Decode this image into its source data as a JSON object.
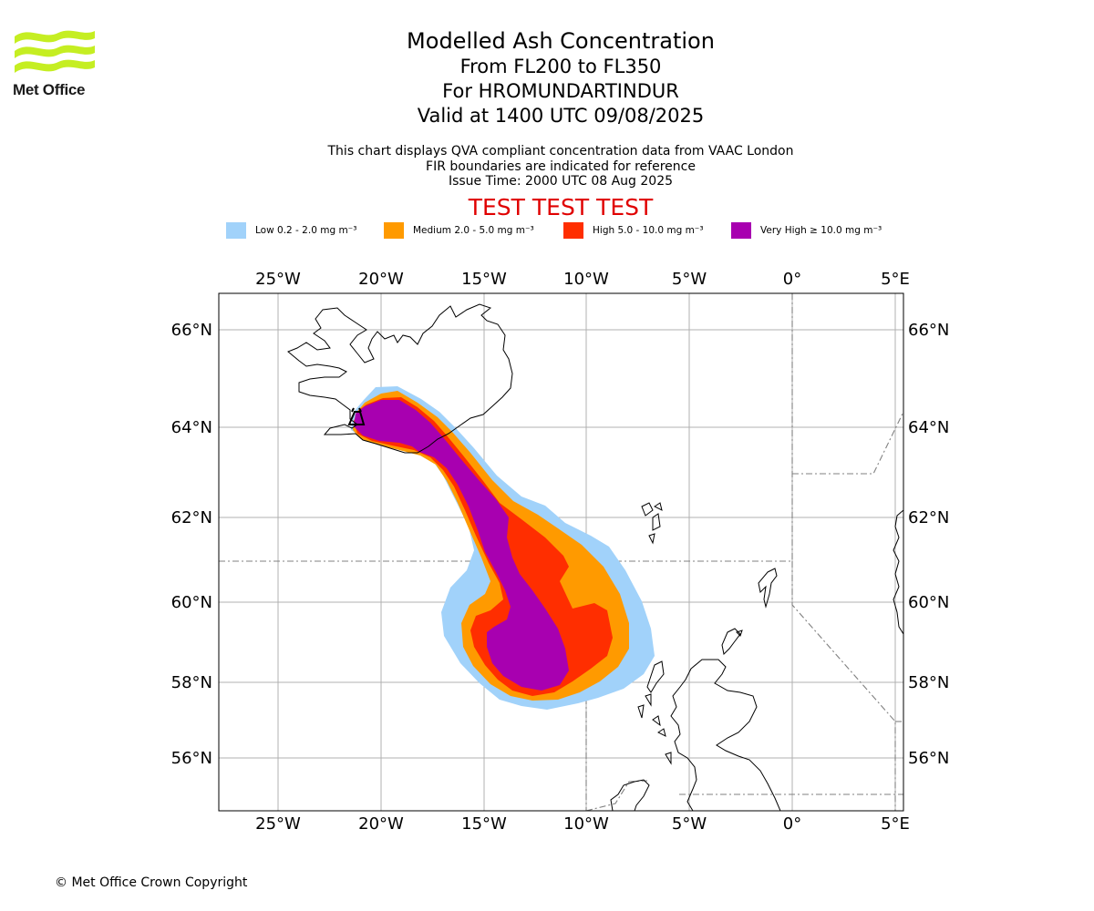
{
  "logo": {
    "text": "Met Office"
  },
  "titles": {
    "line1": "Modelled Ash Concentration",
    "line2": "From FL200 to FL350",
    "line3": "For HROMUNDARTINDUR",
    "line4": "Valid at 1400 UTC 09/08/2025"
  },
  "subtitle": {
    "line1": "This chart displays QVA compliant concentration data from VAAC London",
    "line2": "FIR boundaries are indicated for reference",
    "line3": "Issue Time: 2000 UTC 08 Aug 2025"
  },
  "test_banner": "TEST TEST TEST",
  "legend": [
    {
      "label": "Low 0.2 - 2.0 mg m⁻³",
      "color": "#a1d2fa"
    },
    {
      "label": "Medium 2.0 - 5.0 mg m⁻³",
      "color": "#ff9a00"
    },
    {
      "label": "High 5.0 - 10.0 mg m⁻³",
      "color": "#ff2e00"
    },
    {
      "label": "Very High  ≥  10.0 mg m⁻³",
      "color": "#a800b0"
    }
  ],
  "map": {
    "lon_ticks": [
      "25°W",
      "20°W",
      "15°W",
      "10°W",
      "5°W",
      "0°",
      "5°E"
    ],
    "lat_ticks": [
      "66°N",
      "64°N",
      "62°N",
      "60°N",
      "58°N",
      "56°N"
    ],
    "lon_range": [
      -28,
      5.5
    ],
    "lat_range": [
      54.8,
      66.8
    ],
    "volcano": "HROMUNDARTINDUR"
  },
  "copyright": "© Met Office Crown Copyright"
}
